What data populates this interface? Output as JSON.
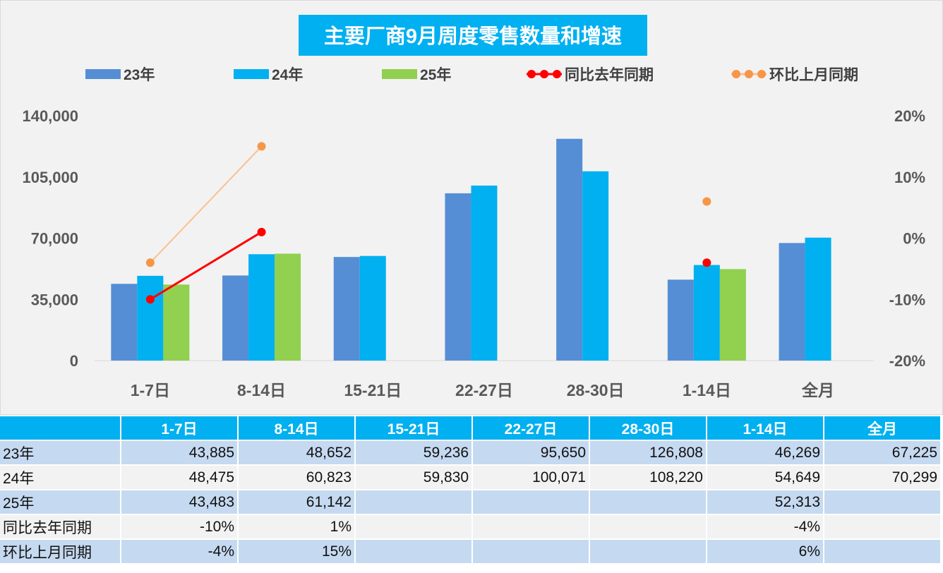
{
  "chart_data": {
    "type": "bar",
    "title": "主要厂商9月周度零售数量和增速",
    "categories": [
      "1-7日",
      "8-14日",
      "15-21日",
      "22-27日",
      "28-30日",
      "1-14日",
      "全月"
    ],
    "series": [
      {
        "name": "23年",
        "type": "bar",
        "color": "#558ed5",
        "values": [
          43885,
          48652,
          59236,
          95650,
          126808,
          46269,
          67225
        ]
      },
      {
        "name": "24年",
        "type": "bar",
        "color": "#00b0f0",
        "values": [
          48475,
          60823,
          59830,
          100071,
          108220,
          54649,
          70299
        ]
      },
      {
        "name": "25年",
        "type": "bar",
        "color": "#92d050",
        "values": [
          43483,
          61142,
          null,
          null,
          null,
          52313,
          null
        ]
      },
      {
        "name": "同比去年同期",
        "type": "line",
        "axis": "right",
        "color": "#ff0000",
        "values": [
          -10,
          1,
          null,
          null,
          null,
          -4,
          null
        ]
      },
      {
        "name": "环比上月同期",
        "type": "line",
        "axis": "right",
        "color": "#fac090",
        "marker_color": "#f79646",
        "values": [
          -4,
          15,
          null,
          null,
          null,
          6,
          null
        ]
      }
    ],
    "y_left": {
      "range": [
        0,
        140000
      ],
      "ticks": [
        "0",
        "35,000",
        "70,000",
        "105,000",
        "140,000"
      ]
    },
    "y_right": {
      "range": [
        -20,
        20
      ],
      "ticks": [
        "-20%",
        "-10%",
        "0%",
        "10%",
        "20%"
      ]
    },
    "grid": false,
    "legend": "top"
  },
  "table": {
    "header": [
      "",
      "1-7日",
      "8-14日",
      "15-21日",
      "22-27日",
      "28-30日",
      "1-14日",
      "全月"
    ],
    "rows": [
      [
        "23年",
        "43,885",
        "48,652",
        "59,236",
        "95,650",
        "126,808",
        "46,269",
        "67,225"
      ],
      [
        "24年",
        "48,475",
        "60,823",
        "59,830",
        "100,071",
        "108,220",
        "54,649",
        "70,299"
      ],
      [
        "25年",
        "43,483",
        "61,142",
        "",
        "",
        "",
        "52,313",
        ""
      ],
      [
        "同比去年同期",
        "-10%",
        "1%",
        "",
        "",
        "",
        "-4%",
        ""
      ],
      [
        "环比上月同期",
        "-4%",
        "15%",
        "",
        "",
        "",
        "6%",
        ""
      ]
    ]
  }
}
